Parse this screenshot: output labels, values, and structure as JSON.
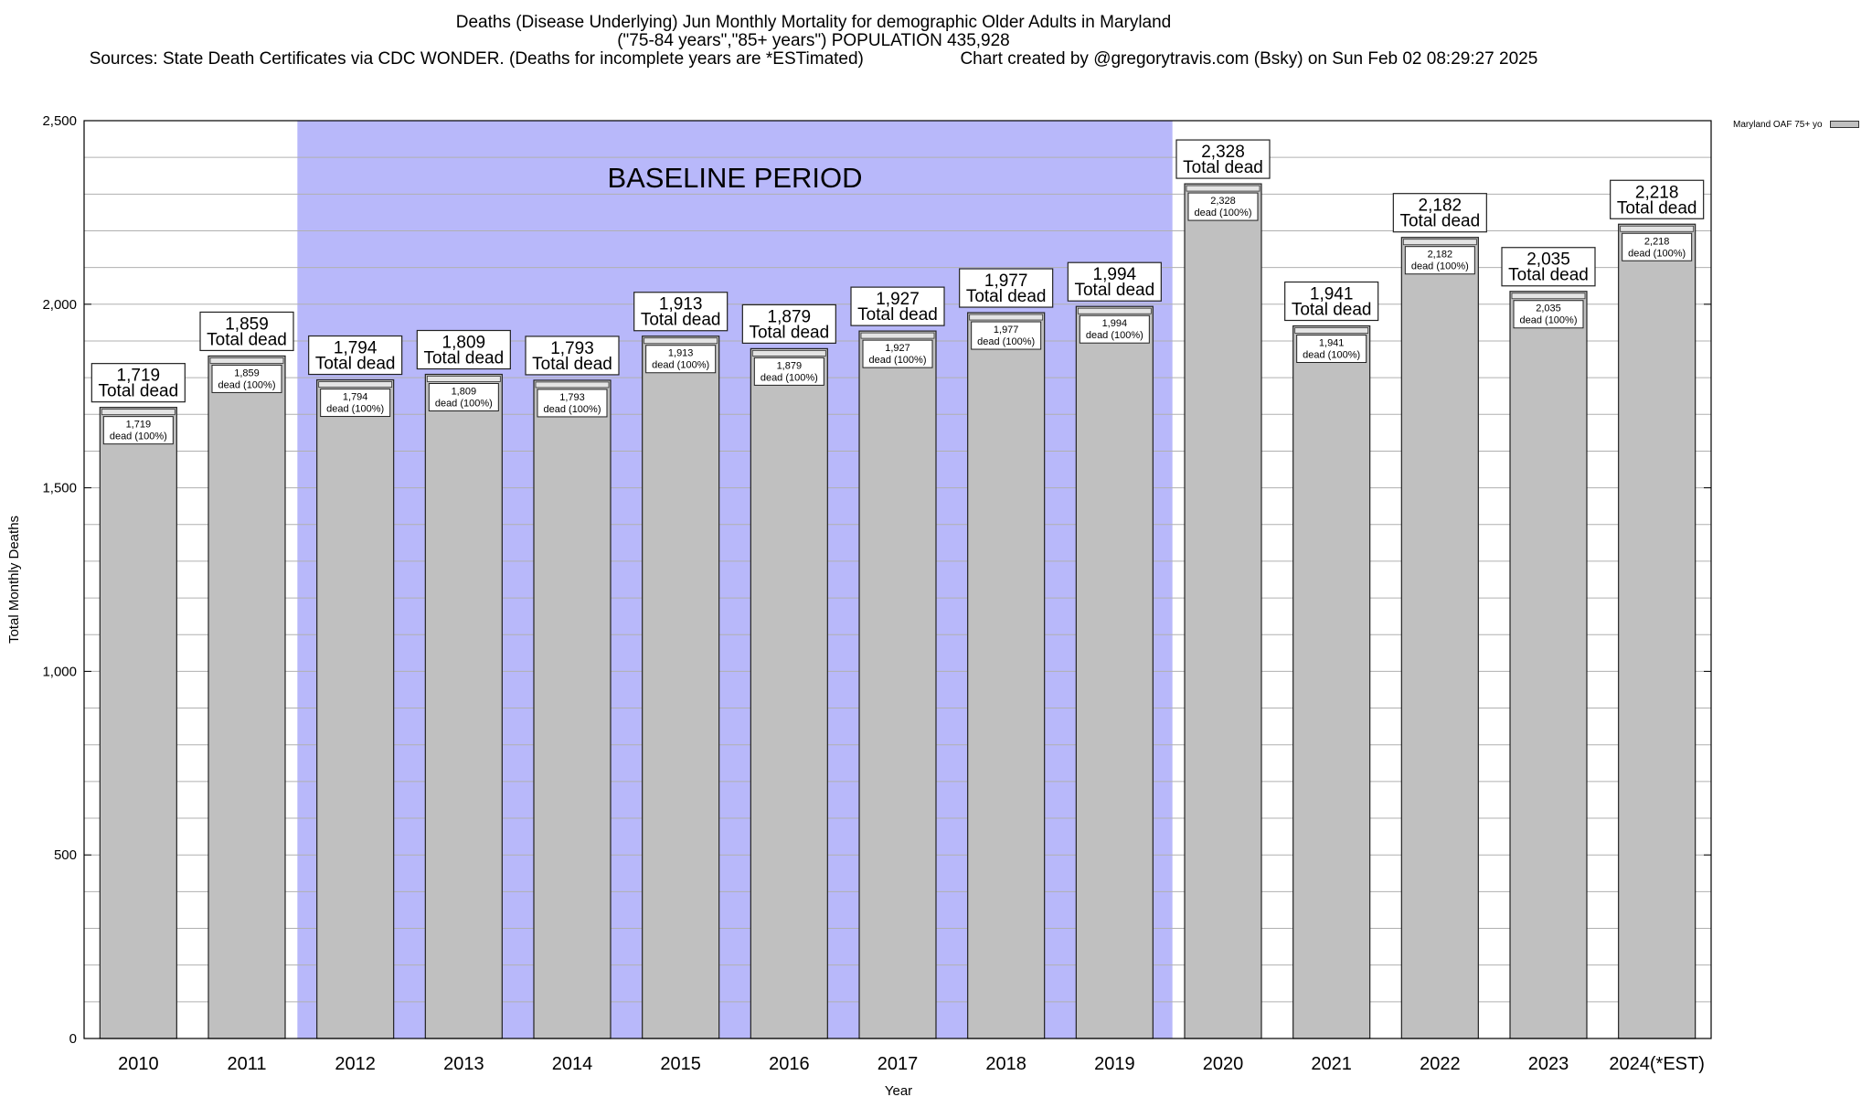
{
  "chart_data": {
    "type": "bar",
    "title": "Deaths (Disease Underlying) Jun Monthly Mortality for demographic Older Adults in Maryland",
    "subtitle": "(\"75-84 years\",\"85+ years\") POPULATION 435,928",
    "source_note": "Sources: State Death Certificates via CDC WONDER. (Deaths for incomplete years are *ESTimated)",
    "credit": "Chart created by @gregorytravis.com (Bsky) on Sun Feb 02 08:29:27 2025",
    "xlabel": "Year",
    "ylabel": "Total Monthly Deaths",
    "ylim": [
      0,
      2500
    ],
    "yticks": [
      0,
      500,
      1000,
      1500,
      2000,
      2500
    ],
    "ytick_labels": [
      "0",
      "500",
      "1,000",
      "1,500",
      "2,000",
      "2,500"
    ],
    "categories": [
      "2010",
      "2011",
      "2012",
      "2013",
      "2014",
      "2015",
      "2016",
      "2017",
      "2018",
      "2019",
      "2020",
      "2021",
      "2022",
      "2023",
      "2024(*EST)"
    ],
    "series": [
      {
        "name": "Maryland OAF 75+ yo",
        "values": [
          1719,
          1859,
          1794,
          1809,
          1793,
          1913,
          1879,
          1927,
          1977,
          1994,
          2328,
          1941,
          2182,
          2035,
          2218
        ],
        "value_labels": [
          "1,719",
          "1,859",
          "1,794",
          "1,809",
          "1,793",
          "1,913",
          "1,879",
          "1,927",
          "1,977",
          "1,994",
          "2,328",
          "1,941",
          "2,182",
          "2,035",
          "2,218"
        ]
      }
    ],
    "total_label_suffix": "Total dead",
    "inner_label_suffix": "dead (100%)",
    "baseline": {
      "label": "BASELINE PERIOD",
      "from_category": "2012",
      "to_category": "2019",
      "color": "#b8b8fa"
    },
    "bar_color": "#c0c0c0",
    "grid": true,
    "legend_position": "top-right"
  }
}
